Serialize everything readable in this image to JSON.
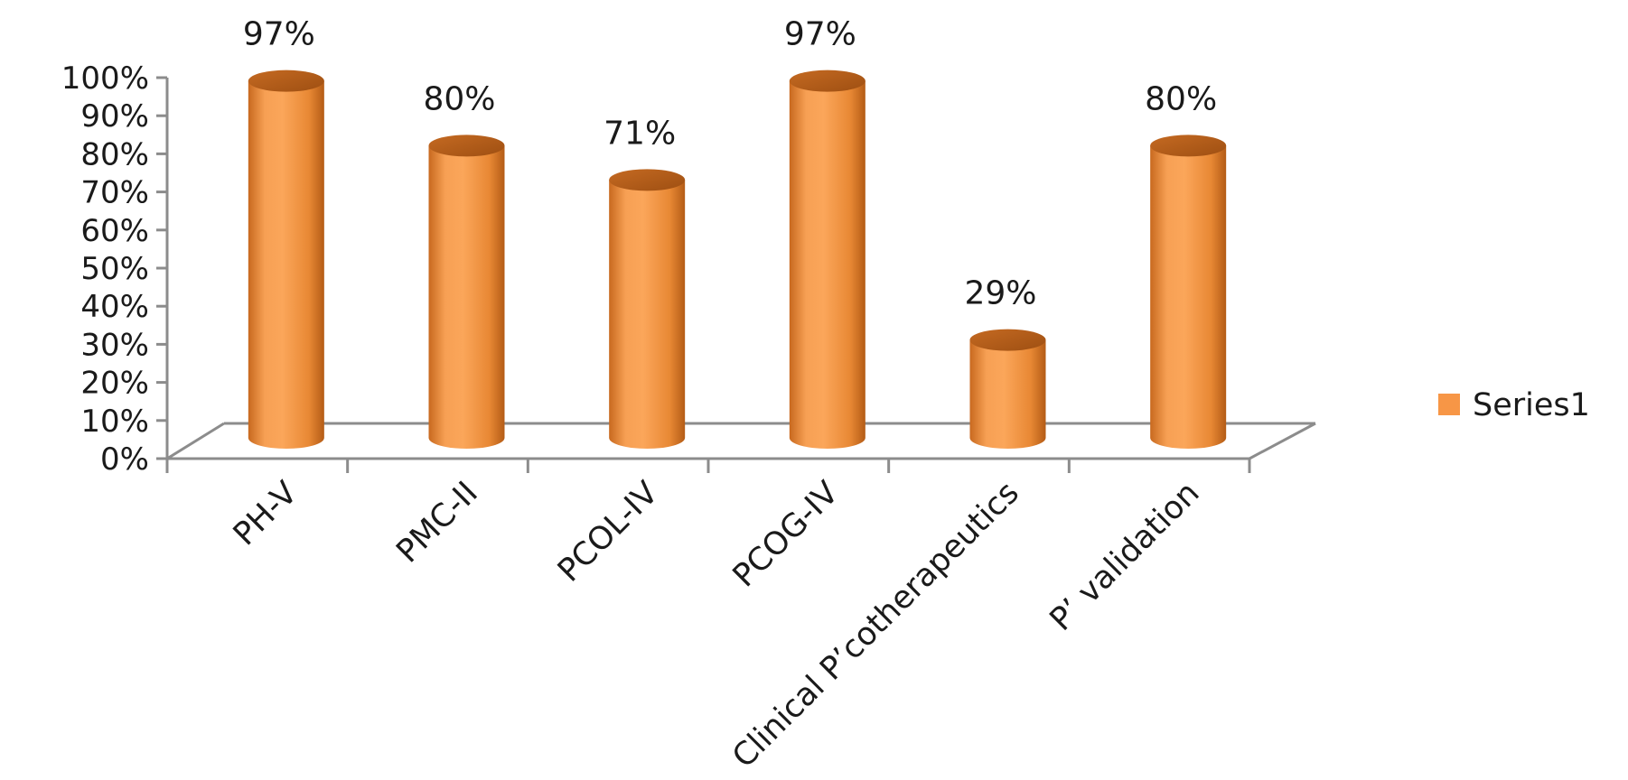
{
  "chart_data": {
    "type": "bar",
    "title": "",
    "xlabel": "",
    "ylabel": "",
    "ylim": [
      0,
      100
    ],
    "y_ticks": [
      "0%",
      "10%",
      "20%",
      "30%",
      "40%",
      "50%",
      "60%",
      "70%",
      "80%",
      "90%",
      "100%"
    ],
    "categories": [
      "PH-V",
      "PMC-II",
      "PCOL-IV",
      "PCOG-IV",
      "Clinical P’cotherapeutics",
      "P’ validation"
    ],
    "series": [
      {
        "name": "Series1",
        "values": [
          97,
          80,
          71,
          97,
          29,
          80
        ],
        "labels": [
          "97%",
          "80%",
          "71%",
          "97%",
          "29%",
          "80%"
        ]
      }
    ],
    "legend_position": "right",
    "style": "3d-cylinder",
    "colors": {
      "bar": "#f79646",
      "bar_dark": "#b8611a",
      "axis": "#8c8c8c"
    }
  }
}
